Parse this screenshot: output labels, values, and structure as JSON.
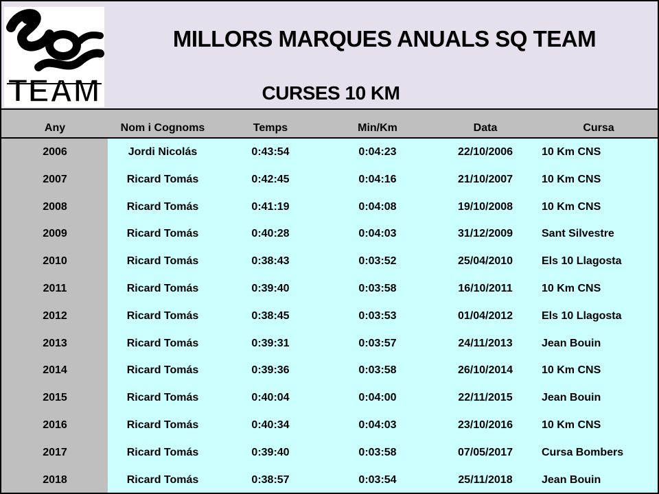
{
  "header": {
    "title": "MILLORS MARQUES ANUALS SQ TEAM",
    "subtitle": "CURSES 10 KM",
    "logo_text": "TEAM"
  },
  "columns": {
    "year": "Any",
    "name": "Nom i Cognoms",
    "time": "Temps",
    "pace": "Min/Km",
    "date": "Data",
    "race": "Cursa"
  },
  "rows": [
    {
      "year": "2006",
      "name": "Jordi Nicolás",
      "time": "0:43:54",
      "pace": "0:04:23",
      "date": "22/10/2006",
      "race": "10 Km CNS"
    },
    {
      "year": "2007",
      "name": "Ricard Tomás",
      "time": "0:42:45",
      "pace": "0:04:16",
      "date": "21/10/2007",
      "race": "10 Km CNS"
    },
    {
      "year": "2008",
      "name": "Ricard Tomás",
      "time": "0:41:19",
      "pace": "0:04:08",
      "date": "19/10/2008",
      "race": "10 Km CNS"
    },
    {
      "year": "2009",
      "name": "Ricard Tomás",
      "time": "0:40:28",
      "pace": "0:04:03",
      "date": "31/12/2009",
      "race": "Sant Silvestre"
    },
    {
      "year": "2010",
      "name": "Ricard Tomás",
      "time": "0:38:43",
      "pace": "0:03:52",
      "date": "25/04/2010",
      "race": "Els 10 Llagosta"
    },
    {
      "year": "2011",
      "name": "Ricard Tomás",
      "time": "0:39:40",
      "pace": "0:03:58",
      "date": "16/10/2011",
      "race": "10 Km CNS"
    },
    {
      "year": "2012",
      "name": "Ricard Tomás",
      "time": "0:38:45",
      "pace": "0:03:53",
      "date": "01/04/2012",
      "race": "Els 10 Llagosta"
    },
    {
      "year": "2013",
      "name": "Ricard Tomás",
      "time": "0:39:31",
      "pace": "0:03:57",
      "date": "24/11/2013",
      "race": "Jean Bouin"
    },
    {
      "year": "2014",
      "name": "Ricard Tomás",
      "time": "0:39:36",
      "pace": "0:03:58",
      "date": "26/10/2014",
      "race": "10 Km CNS"
    },
    {
      "year": "2015",
      "name": "Ricard Tomás",
      "time": "0:40:04",
      "pace": "0:04:00",
      "date": "22/11/2015",
      "race": "Jean Bouin"
    },
    {
      "year": "2016",
      "name": "Ricard Tomás",
      "time": "0:40:34",
      "pace": "0:04:03",
      "date": "23/10/2016",
      "race": "10 Km CNS"
    },
    {
      "year": "2017",
      "name": "Ricard Tomás",
      "time": "0:39:40",
      "pace": "0:03:58",
      "date": "07/05/2017",
      "race": "Cursa Bombers"
    },
    {
      "year": "2018",
      "name": "Ricard Tomás",
      "time": "0:38:57",
      "pace": "0:03:54",
      "date": "25/11/2018",
      "race": "Jean Bouin"
    }
  ],
  "colors": {
    "header_bg": "#e6e0ec",
    "column_header_bg": "#bfbfbf",
    "year_column_bg": "#bfbfbf",
    "data_bg": "#ccffff"
  }
}
